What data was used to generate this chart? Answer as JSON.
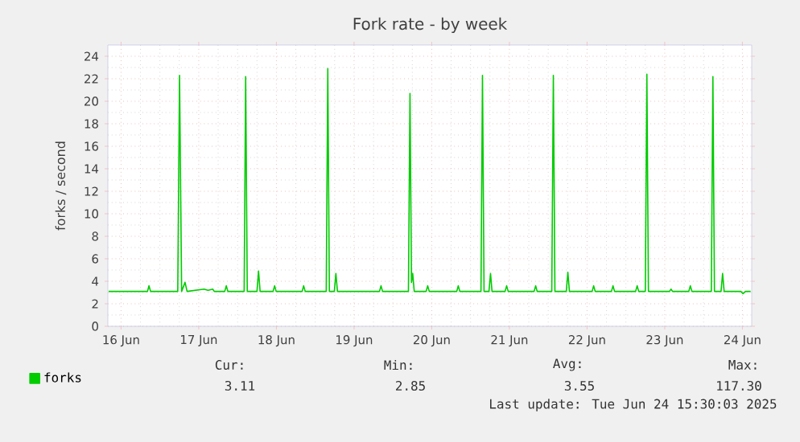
{
  "chart_data": {
    "type": "line",
    "title": "Fork rate - by week",
    "ylabel": "forks / second",
    "xlim": [
      "2025-06-15T19:55",
      "2025-06-24T02:53"
    ],
    "ylim": [
      0,
      25
    ],
    "xticks": [
      {
        "value": "2025-06-16",
        "label": "16 Jun"
      },
      {
        "value": "2025-06-17",
        "label": "17 Jun"
      },
      {
        "value": "2025-06-18",
        "label": "18 Jun"
      },
      {
        "value": "2025-06-19",
        "label": "19 Jun"
      },
      {
        "value": "2025-06-20",
        "label": "20 Jun"
      },
      {
        "value": "2025-06-21",
        "label": "21 Jun"
      },
      {
        "value": "2025-06-22",
        "label": "22 Jun"
      },
      {
        "value": "2025-06-23",
        "label": "23 Jun"
      },
      {
        "value": "2025-06-24",
        "label": "24 Jun"
      }
    ],
    "yticks": [
      0,
      2,
      4,
      6,
      8,
      10,
      12,
      14,
      16,
      18,
      20,
      22,
      24
    ],
    "grid": true,
    "legend": "bottom left",
    "marker": "none",
    "line_style": "solid",
    "annotations": [
      "Cur:",
      "Min:",
      "Avg:",
      "Max:",
      "3.11",
      "2.85",
      "3.55",
      "117.30",
      "Last update: Tue Jun 24 15:30:03 2025"
    ],
    "series": [
      {
        "name": "forks",
        "color": "#00cc00",
        "x": [
          "2025-06-15T20:10",
          "2025-06-16T08:10",
          "2025-06-16T08:37",
          "2025-06-16T09:07",
          "2025-06-16T17:31",
          "2025-06-16T18:04",
          "2025-06-16T18:43",
          "2025-06-16T19:46",
          "2025-06-16T20:24",
          "2025-06-17T01:41",
          "2025-06-17T02:53",
          "2025-06-17T04:19",
          "2025-06-17T04:48",
          "2025-06-17T08:02",
          "2025-06-17T08:31",
          "2025-06-17T09:00",
          "2025-06-17T14:02",
          "2025-06-17T14:30",
          "2025-06-17T15:00",
          "2025-06-17T18:00",
          "2025-06-17T18:29",
          "2025-06-17T18:58",
          "2025-06-17T22:58",
          "2025-06-17T23:27",
          "2025-06-17T23:56",
          "2025-06-18T07:57",
          "2025-06-18T08:25",
          "2025-06-18T08:54",
          "2025-06-18T15:24",
          "2025-06-18T15:53",
          "2025-06-18T16:22",
          "2025-06-18T17:54",
          "2025-06-18T18:23",
          "2025-06-18T18:52",
          "2025-06-19T07:51",
          "2025-06-19T08:20",
          "2025-06-19T08:48",
          "2025-06-19T16:48",
          "2025-06-19T17:17",
          "2025-06-19T17:45",
          "2025-06-19T18:07",
          "2025-06-19T18:36",
          "2025-06-19T22:16",
          "2025-06-19T22:45",
          "2025-06-19T23:14",
          "2025-06-20T07:44",
          "2025-06-20T08:12",
          "2025-06-20T08:41",
          "2025-06-20T15:13",
          "2025-06-20T15:41",
          "2025-06-20T16:10",
          "2025-06-20T17:41",
          "2025-06-20T18:10",
          "2025-06-20T18:38",
          "2025-06-20T22:40",
          "2025-06-20T23:09",
          "2025-06-20T23:38",
          "2025-06-21T07:38",
          "2025-06-21T08:07",
          "2025-06-21T08:35",
          "2025-06-21T13:06",
          "2025-06-21T13:35",
          "2025-06-21T14:04",
          "2025-06-21T17:35",
          "2025-06-21T18:04",
          "2025-06-21T18:33",
          "2025-06-22T01:34",
          "2025-06-22T02:02",
          "2025-06-22T02:31",
          "2025-06-22T07:32",
          "2025-06-22T08:01",
          "2025-06-22T08:30",
          "2025-06-22T15:00",
          "2025-06-22T15:29",
          "2025-06-22T15:58",
          "2025-06-22T18:00",
          "2025-06-22T18:29",
          "2025-06-22T18:58",
          "2025-06-23T01:28",
          "2025-06-23T01:57",
          "2025-06-23T02:25",
          "2025-06-23T07:26",
          "2025-06-23T07:55",
          "2025-06-23T08:24",
          "2025-06-23T14:24",
          "2025-06-23T14:53",
          "2025-06-23T15:22",
          "2025-06-23T17:24",
          "2025-06-23T17:53",
          "2025-06-23T18:22",
          "2025-06-23T23:31",
          "2025-06-24T00:12",
          "2025-06-24T00:58",
          "2025-06-24T02:33"
        ],
        "values": [
          3.1,
          3.1,
          3.6,
          3.1,
          3.1,
          22.3,
          3.1,
          3.9,
          3.1,
          3.3,
          3.2,
          3.3,
          3.1,
          3.1,
          3.6,
          3.1,
          3.1,
          22.2,
          3.1,
          3.1,
          4.9,
          3.1,
          3.1,
          3.6,
          3.1,
          3.1,
          3.6,
          3.1,
          3.1,
          22.9,
          3.1,
          3.1,
          4.7,
          3.1,
          3.1,
          3.6,
          3.1,
          3.1,
          20.7,
          3.9,
          4.7,
          3.1,
          3.1,
          3.6,
          3.1,
          3.1,
          3.6,
          3.1,
          3.1,
          22.3,
          3.1,
          3.1,
          4.7,
          3.1,
          3.1,
          3.6,
          3.1,
          3.1,
          3.6,
          3.1,
          3.1,
          22.3,
          3.1,
          3.1,
          4.8,
          3.1,
          3.1,
          3.6,
          3.1,
          3.1,
          3.6,
          3.1,
          3.1,
          3.6,
          3.1,
          3.1,
          22.4,
          3.1,
          3.1,
          3.3,
          3.1,
          3.1,
          3.6,
          3.1,
          3.1,
          22.2,
          3.1,
          3.1,
          4.7,
          3.1,
          3.1,
          2.9,
          3.1,
          3.1
        ]
      }
    ]
  }
}
